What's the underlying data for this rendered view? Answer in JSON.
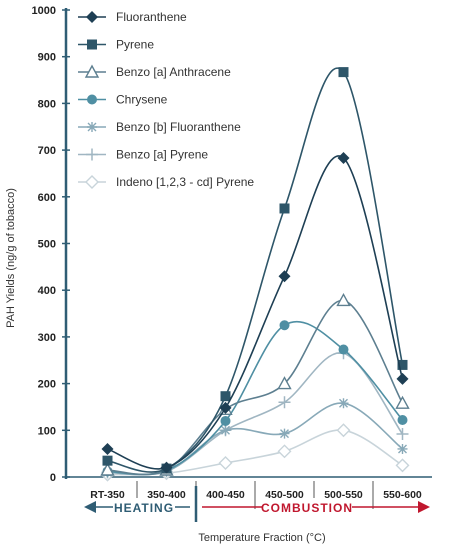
{
  "chart_data": {
    "type": "line",
    "xlabel": "Temperature Fraction (°C)",
    "ylabel": "PAH Yields (ng/g of tobacco)",
    "ylim": [
      0,
      1000
    ],
    "yticks": [
      0,
      100,
      200,
      300,
      400,
      500,
      600,
      700,
      800,
      900,
      1000
    ],
    "categories": [
      "RT-350",
      "350-400",
      "400-450",
      "450-500",
      "500-550",
      "550-600"
    ],
    "legend_position": "top-left",
    "grid": false,
    "phases": [
      {
        "label": "HEATING",
        "color": "#2f5d74",
        "categories": [
          "RT-350",
          "350-400"
        ]
      },
      {
        "label": "COMBUSTION",
        "color": "#c0172e",
        "categories": [
          "400-450",
          "450-500",
          "500-550",
          "550-600"
        ]
      }
    ],
    "series": [
      {
        "name": "Fluoranthene",
        "color": "#1e3f54",
        "marker": "diamond-filled",
        "values": [
          60,
          20,
          148,
          430,
          683,
          210
        ]
      },
      {
        "name": "Pyrene",
        "color": "#2e5669",
        "marker": "square-filled",
        "values": [
          35,
          18,
          173,
          575,
          867,
          240
        ]
      },
      {
        "name": "Benzo [a] Anthracene",
        "color": "#5d7f90",
        "marker": "triangle-open",
        "values": [
          15,
          15,
          145,
          200,
          378,
          158
        ]
      },
      {
        "name": "Chrysene",
        "color": "#4f8fa3",
        "marker": "circle-filled",
        "values": [
          12,
          14,
          120,
          325,
          273,
          122
        ]
      },
      {
        "name": "Benzo [b] Fluoranthene",
        "color": "#88a9b8",
        "marker": "asterisk",
        "values": [
          10,
          12,
          100,
          93,
          158,
          60
        ]
      },
      {
        "name": "Benzo [a] Pyrene",
        "color": "#a0b6c2",
        "marker": "plus",
        "values": [
          10,
          12,
          100,
          160,
          265,
          92
        ]
      },
      {
        "name": "Indeno [1,2,3 - cd] Pyrene",
        "color": "#c8d4da",
        "marker": "diamond-open",
        "values": [
          5,
          8,
          30,
          55,
          100,
          25
        ]
      }
    ]
  }
}
